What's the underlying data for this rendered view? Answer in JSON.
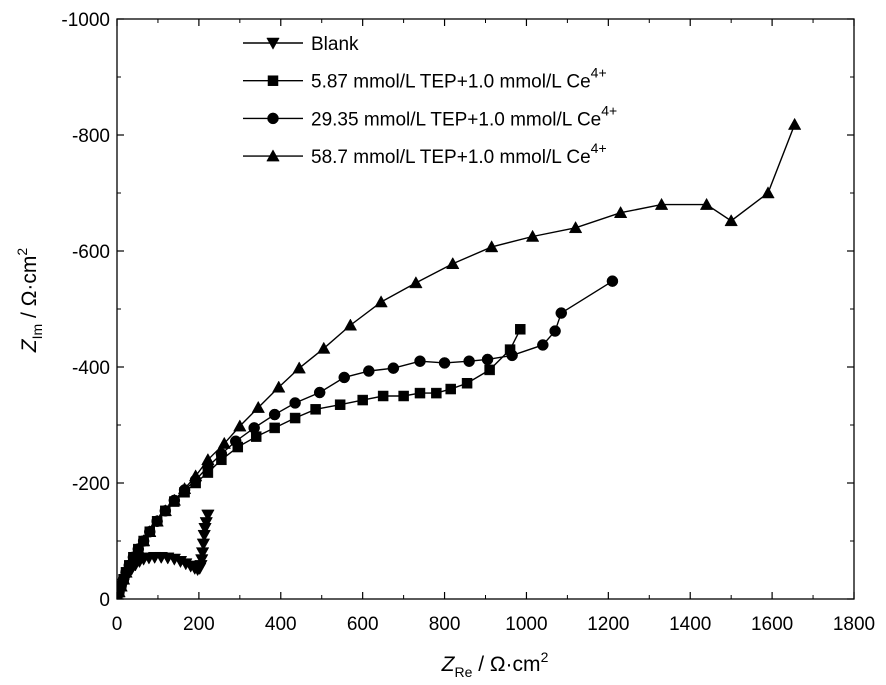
{
  "chart_data": {
    "type": "scatter",
    "xlim": [
      0,
      1800
    ],
    "ylim": [
      0,
      -1000
    ],
    "y_axis_inverted": true,
    "x_ticks": [
      0,
      200,
      400,
      600,
      800,
      1000,
      1200,
      1400,
      1600,
      1800
    ],
    "y_ticks": [
      0,
      -200,
      -400,
      -600,
      -800,
      -1000
    ],
    "x_tick_labels": [
      "0",
      "200",
      "400",
      "600",
      "800",
      "1000",
      "1200",
      "1400",
      "1600",
      "1800"
    ],
    "y_tick_labels": [
      "0",
      "-200",
      "-400",
      "-600",
      "-800",
      "-1000"
    ],
    "xlabel": {
      "main": "Z",
      "sub": "Re",
      "unit": " / Ω·cm",
      "sup": "2"
    },
    "ylabel": {
      "main": "Z",
      "sub": "Im",
      "unit": " / Ω·cm",
      "sup": "2"
    },
    "grid": false,
    "legend_position": "top-center",
    "series": [
      {
        "name": "Blank",
        "name_sup": "",
        "marker": "triangle-down",
        "color": "#000000",
        "x": [
          0,
          5,
          10,
          15,
          20,
          28,
          36,
          45,
          55,
          65,
          78,
          92,
          108,
          124,
          140,
          155,
          168,
          180,
          190,
          197,
          202,
          205,
          207,
          209,
          211,
          213,
          215,
          218,
          222
        ],
        "y": [
          0,
          -8,
          -17,
          -26,
          -34,
          -44,
          -52,
          -59,
          -65,
          -69,
          -71,
          -72,
          -72,
          -71,
          -69,
          -65,
          -61,
          -57,
          -53,
          -51,
          -53,
          -58,
          -68,
          -80,
          -95,
          -110,
          -122,
          -132,
          -145
        ]
      },
      {
        "name": "5.87 mmol/L TEP+1.0 mmol/L Ce",
        "name_sup": "4+",
        "marker": "square",
        "color": "#000000",
        "x": [
          0,
          5,
          10,
          16,
          22,
          30,
          40,
          52,
          65,
          80,
          98,
          118,
          140,
          165,
          192,
          222,
          255,
          295,
          340,
          385,
          435,
          485,
          545,
          600,
          650,
          700,
          740,
          780,
          815,
          855,
          910,
          960,
          985
        ],
        "y": [
          -3,
          -12,
          -22,
          -34,
          -46,
          -58,
          -72,
          -86,
          -100,
          -116,
          -134,
          -152,
          -168,
          -184,
          -200,
          -218,
          -240,
          -262,
          -280,
          -295,
          -312,
          -327,
          -335,
          -343,
          -350,
          -350,
          -355,
          -355,
          -362,
          -372,
          -395,
          -430,
          -465
        ]
      },
      {
        "name": "29.35 mmol/L TEP+1.0 mmol/L Ce",
        "name_sup": "4+",
        "marker": "circle",
        "color": "#000000",
        "x": [
          0,
          5,
          10,
          16,
          22,
          30,
          40,
          52,
          65,
          80,
          98,
          118,
          140,
          165,
          192,
          222,
          255,
          290,
          335,
          385,
          435,
          495,
          555,
          615,
          675,
          740,
          800,
          860,
          905,
          965,
          1040,
          1070,
          1085,
          1210
        ],
        "y": [
          -3,
          -12,
          -22,
          -34,
          -46,
          -58,
          -72,
          -86,
          -100,
          -116,
          -134,
          -152,
          -170,
          -188,
          -205,
          -228,
          -250,
          -272,
          -295,
          -318,
          -338,
          -356,
          -382,
          -393,
          -398,
          -410,
          -407,
          -410,
          -413,
          -420,
          -438,
          -462,
          -493,
          -548
        ]
      },
      {
        "name": "58.7 mmol/L TEP+1.0 mmol/L Ce",
        "name_sup": "4+",
        "marker": "triangle-up",
        "color": "#000000",
        "x": [
          0,
          5,
          10,
          16,
          22,
          30,
          40,
          52,
          65,
          80,
          98,
          118,
          140,
          165,
          192,
          222,
          262,
          300,
          345,
          395,
          445,
          505,
          570,
          645,
          730,
          820,
          915,
          1015,
          1120,
          1230,
          1330,
          1440,
          1500,
          1590,
          1655
        ],
        "y": [
          -3,
          -12,
          -22,
          -34,
          -46,
          -58,
          -72,
          -86,
          -100,
          -116,
          -134,
          -152,
          -170,
          -190,
          -212,
          -240,
          -268,
          -298,
          -330,
          -365,
          -398,
          -432,
          -472,
          -512,
          -545,
          -578,
          -607,
          -625,
          -640,
          -666,
          -680,
          -680,
          -652,
          -700,
          -818
        ]
      }
    ]
  }
}
